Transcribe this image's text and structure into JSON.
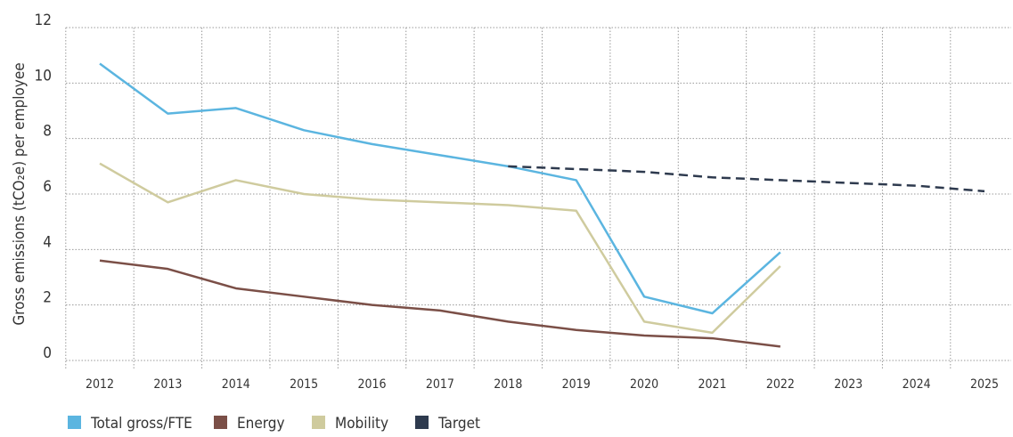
{
  "chart_data": {
    "type": "line",
    "y_label": "Gross emissions (tCO₂e) per employee",
    "categories": [
      "2012",
      "2013",
      "2014",
      "2015",
      "2016",
      "2017",
      "2018",
      "2019",
      "2020",
      "2021",
      "2022",
      "2023",
      "2024",
      "2025"
    ],
    "series": [
      {
        "name": "Total gross/FTE",
        "color": "#5bb5e0",
        "line_style": "solid",
        "values": [
          10.7,
          8.9,
          9.1,
          8.3,
          7.8,
          7.4,
          7.0,
          6.5,
          2.3,
          1.7,
          3.9,
          null,
          null,
          null
        ]
      },
      {
        "name": "Energy",
        "color": "#7b4f47",
        "line_style": "solid",
        "values": [
          3.6,
          3.3,
          2.6,
          2.3,
          2.0,
          1.8,
          1.4,
          1.1,
          0.9,
          0.8,
          0.5,
          null,
          null,
          null
        ]
      },
      {
        "name": "Mobility",
        "color": "#cfcb9e",
        "line_style": "solid",
        "values": [
          7.1,
          5.7,
          6.5,
          6.0,
          5.8,
          5.7,
          5.6,
          5.4,
          1.4,
          1.0,
          3.4,
          null,
          null,
          null
        ]
      },
      {
        "name": "Target",
        "color": "#2e3a4e",
        "line_style": "dashed",
        "values": [
          null,
          null,
          null,
          null,
          null,
          null,
          7.0,
          6.9,
          6.8,
          6.6,
          6.5,
          6.4,
          6.3,
          6.1
        ]
      }
    ],
    "ylim": [
      0,
      12
    ],
    "yticks": [
      0,
      2,
      4,
      6,
      8,
      10,
      12
    ],
    "grid": true,
    "legend": "bottom"
  }
}
